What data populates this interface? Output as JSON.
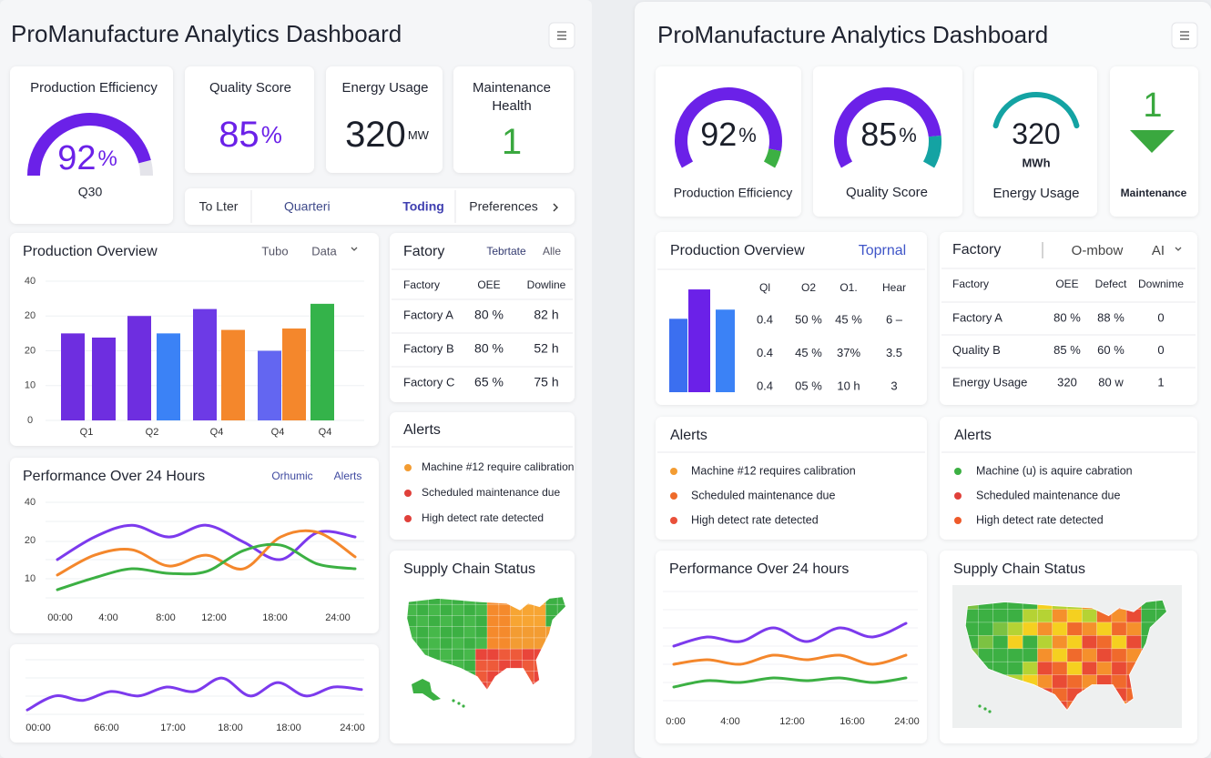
{
  "left": {
    "title": "ProManufacture Analytics Dashboard",
    "kpis": [
      {
        "label": "Production Efficiency",
        "value": 92,
        "unit": "%",
        "sub": "Q30",
        "color": "#6b21e8",
        "track_color": "#e4e4ea"
      },
      {
        "label": "Quality Score",
        "value": 85,
        "unit": "%",
        "color": "#6b21e8"
      },
      {
        "label": "Energy Usage",
        "value": 320,
        "unit": "MW",
        "color": "#1b1f2a"
      },
      {
        "label_lines": [
          "Maintenance",
          "Health"
        ],
        "value": 1,
        "color": "#3aa83f"
      }
    ],
    "tabs": [
      "To Lter",
      "Quarteri",
      "Toding",
      "Preferences"
    ],
    "active_tab": 2,
    "overview": {
      "title": "Production Overview",
      "controls": [
        "Tubo",
        "Data"
      ],
      "y_labels": [
        "40",
        "20",
        "20",
        "10",
        "0"
      ],
      "ylim": [
        0,
        40
      ],
      "bars": [
        {
          "value": 25,
          "color": "#6e2ee0"
        },
        {
          "value": 23.8,
          "color": "#6e2ee0"
        },
        {
          "value": 30,
          "color": "#6e2ee0"
        },
        {
          "value": 25,
          "color": "#3b82f6"
        },
        {
          "value": 32,
          "color": "#6d3ae6"
        },
        {
          "value": 26,
          "color": "#f4872c"
        },
        {
          "value": 20,
          "color": "#6366f1"
        },
        {
          "value": 26.4,
          "color": "#f4872c"
        },
        {
          "value": 33.5,
          "color": "#34b34a"
        }
      ],
      "x_labels": [
        "Q1",
        "Q2",
        "Q4",
        "Q4",
        "Q4"
      ]
    },
    "performance": {
      "title": "Performance Over 24 Hours",
      "controls": [
        "Orhumic",
        "Alerts"
      ],
      "y_labels": [
        "40",
        "20",
        "10"
      ],
      "x_labels": [
        "00:00",
        "4:00",
        "8:00",
        "12:00",
        "18:00",
        "24:00"
      ],
      "ylim": [
        0,
        50
      ],
      "series": [
        {
          "color": "#7c3aed",
          "values": [
            19.6,
            30.4,
            36,
            30.4,
            36,
            28,
            19.6,
            32.6,
            30.4
          ]
        },
        {
          "color": "#f4872c",
          "values": [
            12.2,
            21.7,
            24.3,
            16.5,
            21.7,
            15.2,
            30.4,
            32.6,
            20.9
          ]
        },
        {
          "color": "#3cb043",
          "values": [
            5.2,
            10.9,
            15.2,
            13,
            13.9,
            23.9,
            26.5,
            17.4,
            15.2
          ]
        }
      ]
    },
    "trend": {
      "x_labels": [
        "00:00",
        "66:00",
        "17:00",
        "18:00",
        "18:00",
        "24:00"
      ],
      "ylim": [
        0,
        10
      ],
      "color": "#7c3aed",
      "values": [
        1.4,
        3.6,
        2.9,
        4.3,
        3.6,
        5,
        4.3,
        6.4,
        3.6,
        5.7,
        3.6,
        5,
        4.6
      ]
    },
    "factory": {
      "title": "Fatory",
      "controls": [
        "Tebrtate",
        "Alle"
      ],
      "header": [
        "Factory",
        "OEE",
        "Dowline"
      ],
      "rows": [
        [
          "Factory A",
          "80 %",
          "82 h"
        ],
        [
          "Factory B",
          "80 %",
          "52 h"
        ],
        [
          "Factory C",
          "65 %",
          "75 h"
        ]
      ]
    },
    "alerts": {
      "title": "Alerts",
      "items": [
        {
          "text": "Machine #12 require calibration",
          "color": "#f39c32"
        },
        {
          "text": "Scheduled maintenance due",
          "color": "#e0403a"
        },
        {
          "text": "High detect rate detected",
          "color": "#e0403a"
        }
      ]
    },
    "supply_chain": {
      "title": "Supply Chain Status"
    }
  },
  "right": {
    "title": "ProManufacture Analytics Dashboard",
    "gauges": [
      {
        "label": "Production Efficiency",
        "value": 92,
        "unit": "%",
        "color": "#6b21e8",
        "track_color": "#3cb043"
      },
      {
        "label": "Quality Score",
        "value": 85,
        "unit": "%",
        "color": "#6b21e8",
        "track_color": "#14a3a3"
      }
    ],
    "energy": {
      "label": "Energy Usage",
      "value": 320,
      "unit": "MWh",
      "color": "#14a3a3"
    },
    "maintenance": {
      "label": "Maintenance",
      "value": 1,
      "color": "#3aa83f"
    },
    "overview": {
      "title": "Production Overview",
      "control": "Toprnal",
      "ylim": [
        0,
        6
      ],
      "bars": [
        {
          "value": 4,
          "color": "#3b6ff0"
        },
        {
          "value": 5.6,
          "color": "#6b21e8"
        },
        {
          "value": 4.5,
          "color": "#3b82f6"
        }
      ],
      "columns": [
        "Ql",
        "O2",
        "O1.",
        "Hear"
      ],
      "rows": [
        [
          "0.4",
          "50 %",
          "45 %",
          "6 –"
        ],
        [
          "0.4",
          "45 %",
          "37%",
          "3.5"
        ],
        [
          "0.4",
          "05 %",
          "10 h",
          "3"
        ]
      ]
    },
    "factory": {
      "title": "Factory",
      "controls": [
        "O-mbow",
        "AI"
      ],
      "header": [
        "Factory",
        "OEE",
        "Defect",
        "Downime"
      ],
      "rows": [
        [
          "Factory A",
          "80 %",
          "88 %",
          "0"
        ],
        [
          "Quality B",
          "85 %",
          "60 %",
          "0"
        ],
        [
          "Energy Usage",
          "320",
          "80 w",
          "1"
        ]
      ]
    },
    "alerts": [
      {
        "title": "Alerts",
        "items": [
          {
            "text": "Machine #12 requires calibration",
            "color": "#f39c32"
          },
          {
            "text": "Scheduled maintenance due",
            "color": "#ee6b2a"
          },
          {
            "text": "High detect rate detected",
            "color": "#e9503a"
          }
        ]
      },
      {
        "title": "Alerts",
        "items": [
          {
            "text": "Machine (u) is aquire cabration",
            "color": "#3cb043"
          },
          {
            "text": "Scheduled maintenance due",
            "color": "#e0403a"
          },
          {
            "text": "High detect rate detected",
            "color": "#ee5a2a"
          }
        ]
      }
    ],
    "performance": {
      "title": "Performance Over 24 hours",
      "x_labels": [
        "0:00",
        "4:00",
        "12:00",
        "16:00",
        "24:00"
      ],
      "ylim": [
        0,
        10
      ],
      "series": [
        {
          "color": "#7c3aed",
          "values": [
            6.5,
            7.5,
            7,
            8.5,
            7,
            8.5,
            7.5,
            9
          ]
        },
        {
          "color": "#f4872c",
          "values": [
            4.5,
            5,
            4.5,
            5.5,
            5,
            5.5,
            4.5,
            5.5
          ]
        },
        {
          "color": "#3cb043",
          "values": [
            2,
            2.7,
            2.5,
            3,
            2.7,
            3,
            2.5,
            3
          ]
        }
      ]
    },
    "supply_chain": {
      "title": "Supply Chain Status"
    }
  }
}
